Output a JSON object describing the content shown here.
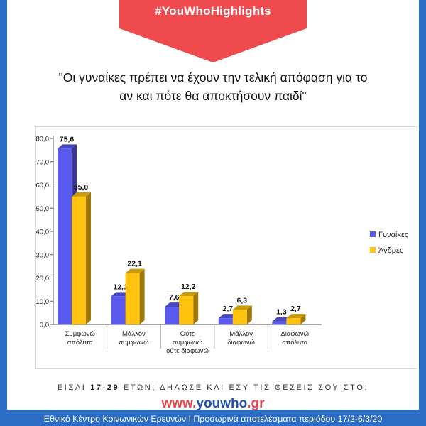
{
  "header": {
    "hashtag": "#YouWhoHighlights",
    "title_line1": "\"Οι γυναίκες πρέπει να έχουν την τελική απόφαση για το",
    "title_line2": "αν και πότε θα αποκτήσουν παιδί\""
  },
  "footer": {
    "cta_prefix": "ΕΙΣΑΙ ",
    "cta_age": "17-29",
    "cta_suffix": " ΕΤΩΝ; ΔΗΛΩΣΕ ΚΑΙ ΕΣΥ ΤΙΣ ΘΕΣΕΙΣ ΣΟΥ ΣΤΟ:",
    "site_prefix": "www.",
    "site_name": "youwho",
    "site_suffix": ".gr",
    "source": "Εθνικό Κέντρο Κοινωνικών Ερευνών Ι Προσωρινά αποτελέσματα περιόδου 17/2-6/3/20"
  },
  "colors": {
    "background": "#2b6cc4",
    "banner": "#ef4b4f",
    "site": "#e8454a",
    "series_women": "#5a5aee",
    "series_men": "#ffc20e"
  },
  "chart_data": {
    "type": "bar",
    "categories": [
      [
        "Συμφωνώ",
        "απόλυτα"
      ],
      [
        "Μάλλον",
        "συμφωνώ"
      ],
      [
        "Ούτε",
        "συμφωνώ",
        "ούτε διαφωνώ"
      ],
      [
        "Μάλλον",
        "διαφωνώ"
      ],
      [
        "Διαφωνώ",
        "απόλυτα"
      ]
    ],
    "series": [
      {
        "name": "Γυναίκες",
        "values": [
          75.6,
          12.1,
          7.6,
          2.7,
          1.3
        ],
        "labels": [
          "75,6",
          "12,1",
          "7,6",
          "2,7",
          "1,3"
        ]
      },
      {
        "name": "Άνδρες",
        "values": [
          55.0,
          22.1,
          12.2,
          6.3,
          2.7
        ],
        "labels": [
          "55,0",
          "22,1",
          "12,2",
          "6,3",
          "2,7"
        ]
      }
    ],
    "ylim": [
      0,
      80
    ],
    "yticks": [
      "0,0",
      "10,0",
      "20,0",
      "30,0",
      "40,0",
      "50,0",
      "60,0",
      "70,0",
      "80,0"
    ],
    "grid": false,
    "legend": "right",
    "style": "3d"
  }
}
